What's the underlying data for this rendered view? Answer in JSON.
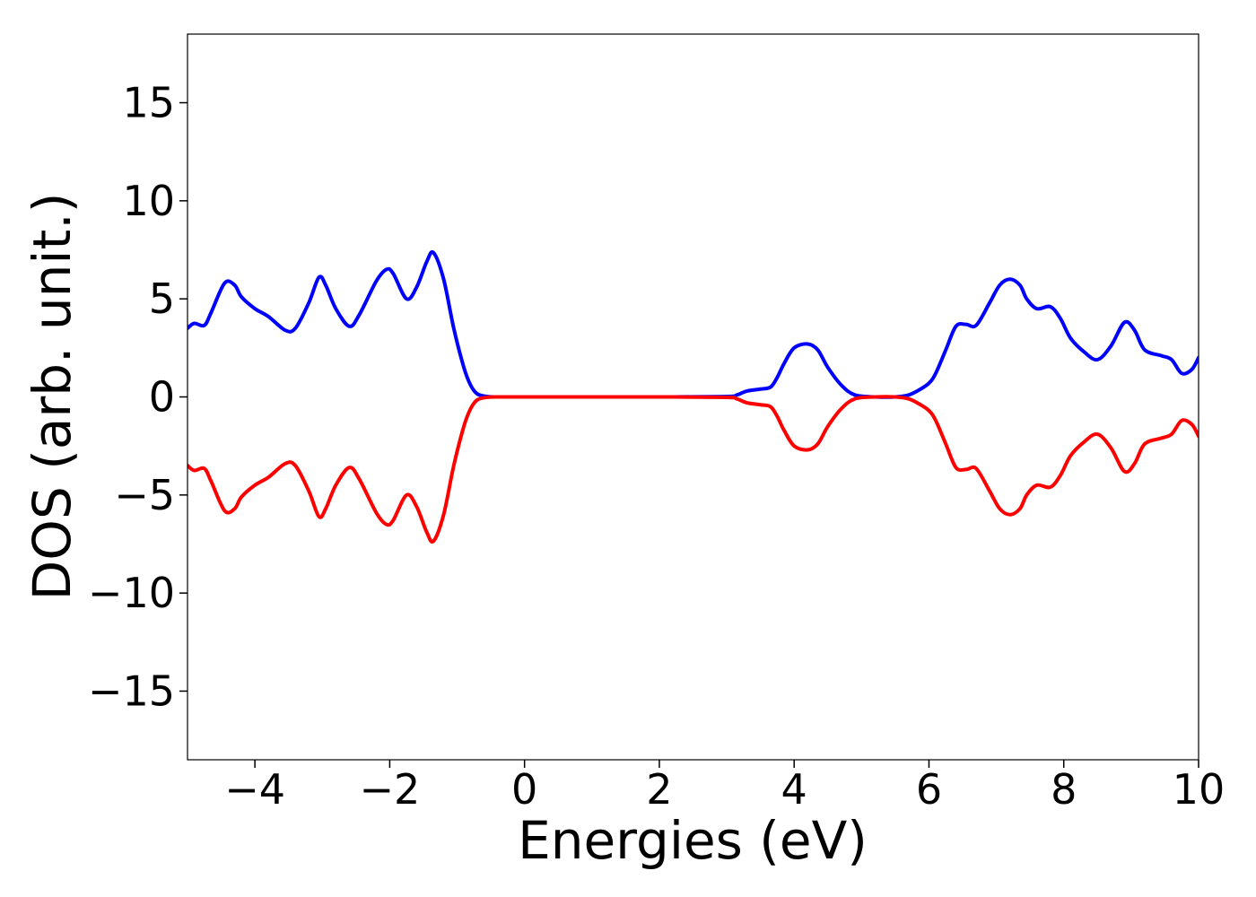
{
  "chart_data": {
    "type": "line",
    "title": "",
    "xlabel": "Energies (eV)",
    "ylabel": "DOS (arb. unit.)",
    "xlim": [
      -5,
      10
    ],
    "ylim": [
      -18.5,
      18.5
    ],
    "xticks": [
      -4,
      -2,
      0,
      2,
      4,
      6,
      8,
      10
    ],
    "xtick_labels": [
      "−4",
      "−2",
      "0",
      "2",
      "4",
      "6",
      "8",
      "10"
    ],
    "yticks": [
      -15,
      -10,
      -5,
      0,
      5,
      10,
      15
    ],
    "ytick_labels": [
      "−15",
      "−10",
      "−5",
      "0",
      "5",
      "10",
      "15"
    ],
    "grid": false,
    "legend": "none",
    "series": [
      {
        "color": "#0000ff",
        "x": [
          -5.0,
          -4.9,
          -4.75,
          -4.65,
          -4.45,
          -4.3,
          -4.2,
          -4.0,
          -3.8,
          -3.55,
          -3.4,
          -3.2,
          -3.05,
          -2.95,
          -2.8,
          -2.6,
          -2.45,
          -2.2,
          -2.05,
          -1.95,
          -1.75,
          -1.6,
          -1.45,
          -1.35,
          -1.2,
          -1.05,
          -0.9,
          -0.8,
          -0.7,
          -0.55,
          -0.4,
          0.0,
          1.0,
          2.0,
          3.0,
          3.15,
          3.3,
          3.5,
          3.65,
          3.75,
          3.85,
          4.0,
          4.2,
          4.35,
          4.5,
          4.7,
          4.9,
          5.2,
          5.5,
          5.7,
          5.85,
          6.0,
          6.1,
          6.25,
          6.4,
          6.55,
          6.7,
          6.9,
          7.05,
          7.2,
          7.35,
          7.45,
          7.6,
          7.8,
          7.95,
          8.1,
          8.3,
          8.5,
          8.7,
          8.9,
          9.05,
          9.2,
          9.45,
          9.6,
          9.75,
          9.9,
          10.0
        ],
        "y": [
          3.5,
          3.75,
          3.65,
          4.3,
          5.8,
          5.7,
          5.1,
          4.5,
          4.1,
          3.4,
          3.5,
          4.8,
          6.1,
          5.7,
          4.5,
          3.6,
          4.2,
          5.9,
          6.5,
          6.3,
          5.0,
          5.6,
          6.9,
          7.35,
          6.0,
          3.5,
          1.5,
          0.6,
          0.15,
          0.02,
          0.0,
          0.0,
          0.0,
          0.0,
          0.02,
          0.1,
          0.3,
          0.4,
          0.5,
          1.0,
          1.7,
          2.5,
          2.7,
          2.4,
          1.5,
          0.6,
          0.1,
          0.0,
          0.0,
          0.1,
          0.35,
          0.7,
          1.2,
          2.4,
          3.6,
          3.7,
          3.65,
          4.8,
          5.7,
          6.0,
          5.7,
          5.0,
          4.5,
          4.6,
          4.0,
          3.0,
          2.3,
          1.9,
          2.6,
          3.8,
          3.4,
          2.4,
          2.1,
          1.9,
          1.2,
          1.4,
          2.0
        ]
      },
      {
        "color": "#ff0000",
        "x": [
          -5.0,
          -4.9,
          -4.75,
          -4.65,
          -4.45,
          -4.3,
          -4.2,
          -4.0,
          -3.8,
          -3.55,
          -3.4,
          -3.2,
          -3.05,
          -2.95,
          -2.8,
          -2.6,
          -2.45,
          -2.2,
          -2.05,
          -1.95,
          -1.75,
          -1.6,
          -1.45,
          -1.35,
          -1.2,
          -1.05,
          -0.9,
          -0.8,
          -0.7,
          -0.55,
          -0.4,
          0.0,
          1.0,
          2.0,
          3.0,
          3.15,
          3.3,
          3.5,
          3.65,
          3.75,
          3.85,
          4.0,
          4.2,
          4.35,
          4.5,
          4.7,
          4.9,
          5.2,
          5.5,
          5.7,
          5.85,
          6.0,
          6.1,
          6.25,
          6.4,
          6.55,
          6.7,
          6.9,
          7.05,
          7.2,
          7.35,
          7.45,
          7.6,
          7.8,
          7.95,
          8.1,
          8.3,
          8.5,
          8.7,
          8.9,
          9.05,
          9.2,
          9.45,
          9.6,
          9.75,
          9.9,
          10.0
        ],
        "y": [
          -3.5,
          -3.75,
          -3.65,
          -4.3,
          -5.8,
          -5.7,
          -5.1,
          -4.5,
          -4.1,
          -3.4,
          -3.5,
          -4.8,
          -6.1,
          -5.7,
          -4.5,
          -3.6,
          -4.2,
          -5.9,
          -6.5,
          -6.3,
          -5.0,
          -5.6,
          -6.9,
          -7.35,
          -6.0,
          -3.5,
          -1.5,
          -0.6,
          -0.15,
          -0.02,
          0.0,
          0.0,
          0.0,
          0.0,
          -0.02,
          -0.1,
          -0.3,
          -0.4,
          -0.5,
          -1.0,
          -1.7,
          -2.5,
          -2.7,
          -2.4,
          -1.5,
          -0.6,
          -0.1,
          0.0,
          0.0,
          -0.1,
          -0.35,
          -0.7,
          -1.2,
          -2.4,
          -3.6,
          -3.7,
          -3.65,
          -4.8,
          -5.7,
          -6.0,
          -5.7,
          -5.0,
          -4.5,
          -4.6,
          -4.0,
          -3.0,
          -2.3,
          -1.9,
          -2.6,
          -3.8,
          -3.4,
          -2.4,
          -2.1,
          -1.9,
          -1.2,
          -1.4,
          -2.0
        ]
      }
    ]
  }
}
